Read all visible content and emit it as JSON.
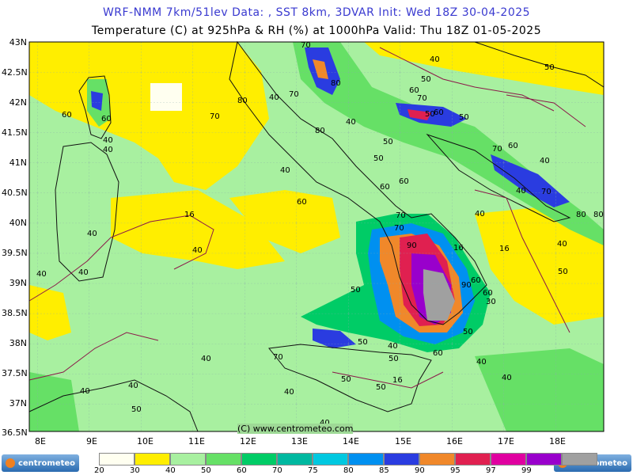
{
  "header": {
    "line1": "WRF-NMM 7km/51lev  Data: , SST 8km, 3DVAR  Init: Wed 18Z 30-04-2025",
    "line2": "Temperature (C) at 925hPa & RH (%) at 1000hPa  Valid: Thu 18Z 01-05-2025"
  },
  "axes": {
    "lat_labels": [
      "43N",
      "42.5N",
      "42N",
      "41.5N",
      "41N",
      "40.5N",
      "40N",
      "39.5N",
      "39N",
      "38.5N",
      "38N",
      "37.5N",
      "37N",
      "36.5N"
    ],
    "lon_labels": [
      "8E",
      "9E",
      "10E",
      "11E",
      "12E",
      "13E",
      "14E",
      "15E",
      "16E",
      "17E",
      "18E"
    ]
  },
  "contour_labels": [
    "70",
    "40",
    "50",
    "50",
    "40",
    "80",
    "60",
    "60",
    "40",
    "40",
    "70",
    "70",
    "60",
    "50",
    "50",
    "60",
    "80",
    "70",
    "80",
    "40",
    "40",
    "60",
    "50",
    "50",
    "70",
    "60",
    "40",
    "40",
    "60",
    "60",
    "40",
    "16",
    "70",
    "40",
    "70",
    "50",
    "16",
    "70",
    "80",
    "40",
    "90",
    "16",
    "80",
    "40",
    "50",
    "40",
    "60",
    "40",
    "90",
    "60",
    "30",
    "50",
    "40",
    "50",
    "70",
    "50",
    "60",
    "40",
    "40",
    "50",
    "40",
    "16",
    "40",
    "40",
    "40",
    "50",
    "50",
    "40"
  ],
  "copyright": "(C) www.centrometeo.com",
  "legend": {
    "colors": [
      "#fffff0",
      "#ffee00",
      "#a8f0a0",
      "#66e066",
      "#00cc66",
      "#00b8a0",
      "#00c8e0",
      "#0090f0",
      "#2a3ce0",
      "#f0882a",
      "#e02050",
      "#e000a0",
      "#9900cc",
      "#a0a0a0"
    ],
    "labels": [
      "20",
      "30",
      "40",
      "50",
      "60",
      "70",
      "75",
      "80",
      "85",
      "90",
      "95",
      "97",
      "99"
    ]
  },
  "logo": {
    "text": "centrometeo"
  }
}
